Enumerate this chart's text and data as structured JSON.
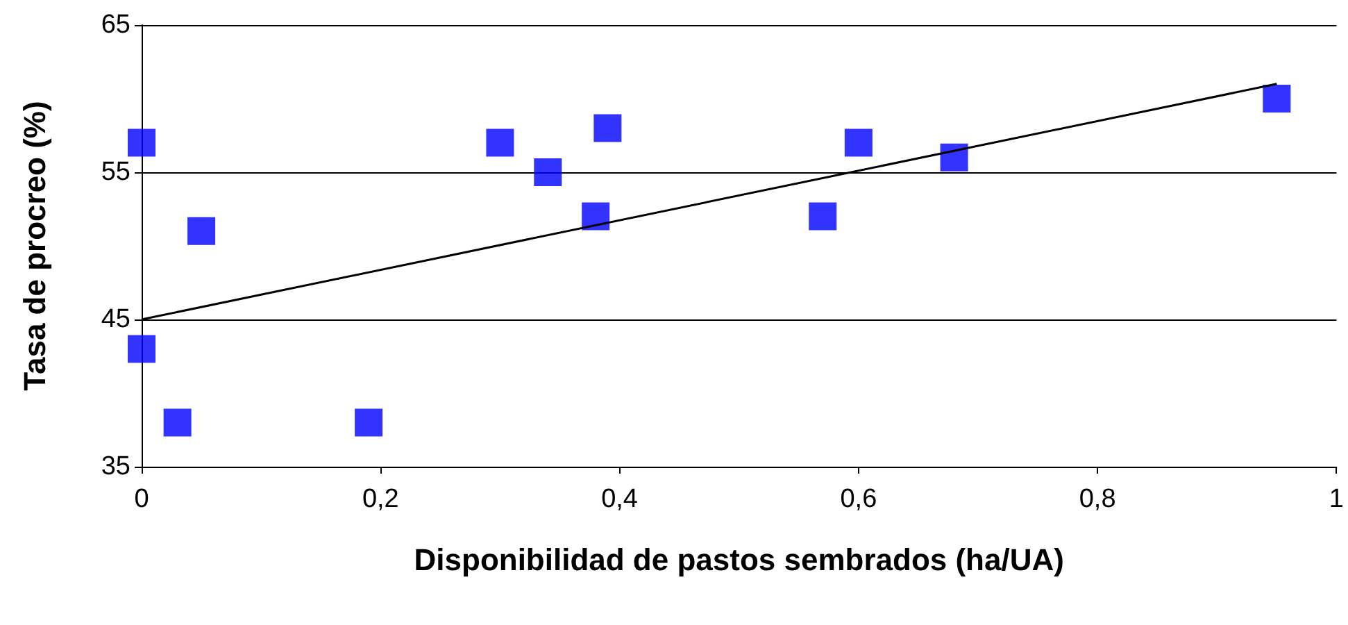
{
  "chart_data": {
    "type": "scatter",
    "xlabel": "Disponibilidad de pastos sembrados (ha/UA)",
    "ylabel": "Tasa de procreo (%)",
    "xlim": [
      0,
      1
    ],
    "xticks": [
      0,
      {
        "value": 0.2,
        "label": "0,2"
      },
      {
        "value": 0.4,
        "label": "0,4"
      },
      {
        "value": 0.6,
        "label": "0,6"
      },
      {
        "value": 0.8,
        "label": "0,8"
      },
      1
    ],
    "ylim": [
      35,
      65
    ],
    "yticks": [
      35,
      45,
      55,
      65
    ],
    "grid": "y",
    "marker": "square",
    "series": [
      {
        "color": "#0000ff",
        "x": [
          0,
          0,
          0.03,
          0.05,
          0.19,
          0.3,
          0.34,
          0.38,
          0.39,
          0.57,
          0.6,
          0.68,
          0.95
        ],
        "values": [
          57,
          43,
          38,
          51,
          38,
          57,
          55,
          52,
          58,
          52,
          57,
          56,
          60
        ]
      },
      {
        "type": "line",
        "color": "#000000",
        "x": [
          0,
          0.95
        ],
        "values": [
          45,
          61
        ],
        "marker": "none"
      }
    ]
  }
}
